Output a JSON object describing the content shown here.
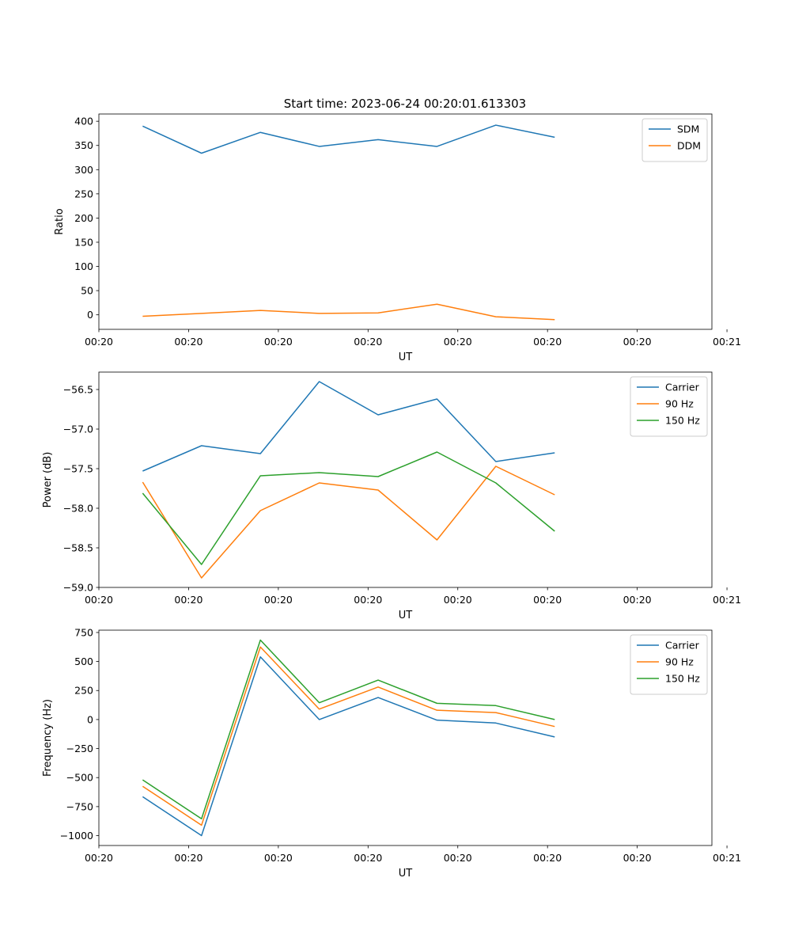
{
  "title": "Start time: 2023-06-24 00:20:01.613303",
  "colors": {
    "blue": "#1f77b4",
    "orange": "#ff7f0e",
    "green": "#2ca02c"
  },
  "chart_data": [
    {
      "type": "line",
      "xlabel": "UT",
      "ylabel": "Ratio",
      "ylim": [
        -30,
        415
      ],
      "yticks": [
        0,
        50,
        100,
        150,
        200,
        250,
        300,
        350,
        400
      ],
      "ytick_labels": [
        "0",
        "50",
        "100",
        "150",
        "200",
        "250",
        "300",
        "350",
        "400"
      ],
      "xlim": [
        0,
        8.54
      ],
      "xticks": [
        0,
        1.25,
        2.5,
        3.75,
        5.0,
        6.25,
        7.5,
        8.75
      ],
      "xtick_labels": [
        "00:20",
        "00:20",
        "00:20",
        "00:20",
        "00:20",
        "00:20",
        "00:20",
        "00:21"
      ],
      "x": [
        0.61,
        1.43,
        2.25,
        3.07,
        3.89,
        4.71,
        5.53,
        6.35
      ],
      "legend": "top-right",
      "grid": false,
      "series": [
        {
          "name": "SDM",
          "color": "#1f77b4",
          "values": [
            390,
            334,
            377,
            348,
            362,
            348,
            392,
            367
          ]
        },
        {
          "name": "DDM",
          "color": "#ff7f0e",
          "values": [
            -3,
            3,
            9,
            3,
            4,
            22,
            -4,
            -10
          ]
        }
      ]
    },
    {
      "type": "line",
      "xlabel": "UT",
      "ylabel": "Power (dB)",
      "ylim": [
        -59.0,
        -56.28
      ],
      "yticks": [
        -59.0,
        -58.5,
        -58.0,
        -57.5,
        -57.0,
        -56.5
      ],
      "ytick_labels": [
        "−59.0",
        "−58.5",
        "−58.0",
        "−57.5",
        "−57.0",
        "−56.5"
      ],
      "xlim": [
        0,
        8.54
      ],
      "xticks": [
        0,
        1.25,
        2.5,
        3.75,
        5.0,
        6.25,
        7.5,
        8.75
      ],
      "xtick_labels": [
        "00:20",
        "00:20",
        "00:20",
        "00:20",
        "00:20",
        "00:20",
        "00:20",
        "00:21"
      ],
      "x": [
        0.61,
        1.43,
        2.25,
        3.07,
        3.89,
        4.71,
        5.53,
        6.35
      ],
      "legend": "top-right",
      "grid": false,
      "series": [
        {
          "name": "Carrier",
          "color": "#1f77b4",
          "values": [
            -57.53,
            -57.21,
            -57.31,
            -56.4,
            -56.82,
            -56.62,
            -57.41,
            -57.3
          ]
        },
        {
          "name": "90 Hz",
          "color": "#ff7f0e",
          "values": [
            -57.67,
            -58.88,
            -58.03,
            -57.68,
            -57.77,
            -58.4,
            -57.47,
            -57.83
          ]
        },
        {
          "name": "150 Hz",
          "color": "#2ca02c",
          "values": [
            -57.81,
            -58.71,
            -57.59,
            -57.55,
            -57.6,
            -57.29,
            -57.68,
            -58.29
          ]
        }
      ]
    },
    {
      "type": "line",
      "xlabel": "UT",
      "ylabel": "Frequency (Hz)",
      "ylim": [
        -1085,
        770
      ],
      "yticks": [
        -1000,
        -750,
        -500,
        -250,
        0,
        250,
        500,
        750
      ],
      "ytick_labels": [
        "−1000",
        "−750",
        "−500",
        "−250",
        "0",
        "250",
        "500",
        "750"
      ],
      "xlim": [
        0,
        8.54
      ],
      "xticks": [
        0,
        1.25,
        2.5,
        3.75,
        5.0,
        6.25,
        7.5,
        8.75
      ],
      "xtick_labels": [
        "00:20",
        "00:20",
        "00:20",
        "00:20",
        "00:20",
        "00:20",
        "00:20",
        "00:21"
      ],
      "x": [
        0.61,
        1.43,
        2.25,
        3.07,
        3.89,
        4.71,
        5.53,
        6.35
      ],
      "legend": "top-right",
      "grid": false,
      "series": [
        {
          "name": "Carrier",
          "color": "#1f77b4",
          "values": [
            -665,
            -1000,
            540,
            0,
            190,
            -5,
            -30,
            -150
          ]
        },
        {
          "name": "90 Hz",
          "color": "#ff7f0e",
          "values": [
            -575,
            -910,
            625,
            90,
            280,
            80,
            60,
            -60
          ]
        },
        {
          "name": "150 Hz",
          "color": "#2ca02c",
          "values": [
            -520,
            -855,
            685,
            145,
            340,
            140,
            120,
            0
          ]
        }
      ]
    }
  ]
}
